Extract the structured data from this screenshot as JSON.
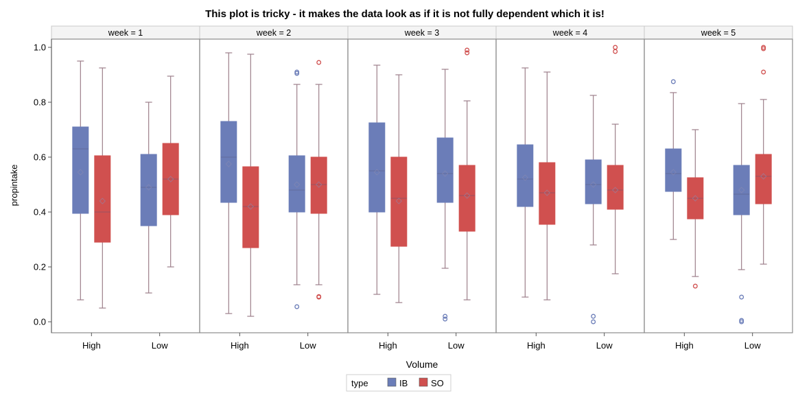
{
  "chart_data": {
    "type": "boxplot",
    "title": "This plot is tricky - it makes the data look as if it is not fully dependent which it is!",
    "xlabel": "Volume",
    "ylabel": "propintake",
    "ylim": [
      -0.04,
      1.03
    ],
    "yticks": [
      0.0,
      0.2,
      0.4,
      0.6,
      0.8,
      1.0
    ],
    "ytick_labels": [
      "0.0",
      "0.2",
      "0.4",
      "0.6",
      "0.8",
      "1.0"
    ],
    "categories": [
      "High",
      "Low"
    ],
    "panel_var": "week",
    "panel_labels": [
      "week = 1",
      "week = 2",
      "week = 3",
      "week = 4",
      "week = 5"
    ],
    "legend": {
      "title": "type",
      "position": "bottom",
      "items": [
        {
          "name": "IB",
          "color": "#6b7db8"
        },
        {
          "name": "SO",
          "color": "#d0504f"
        }
      ]
    },
    "colors": {
      "IB": "#6b7db8",
      "SO": "#d0504f",
      "whisker": "#9c7f8a",
      "frame": "#8c8c8c"
    },
    "panels": [
      {
        "week": 1,
        "groups": [
          {
            "category": "High",
            "type": "IB",
            "min": 0.08,
            "q1": 0.395,
            "median": 0.63,
            "q3": 0.71,
            "max": 0.95,
            "mean": 0.545,
            "outliers": []
          },
          {
            "category": "High",
            "type": "SO",
            "min": 0.05,
            "q1": 0.29,
            "median": 0.4,
            "q3": 0.605,
            "max": 0.925,
            "mean": 0.44,
            "outliers": []
          },
          {
            "category": "Low",
            "type": "IB",
            "min": 0.105,
            "q1": 0.35,
            "median": 0.49,
            "q3": 0.61,
            "max": 0.8,
            "mean": 0.49,
            "outliers": []
          },
          {
            "category": "Low",
            "type": "SO",
            "min": 0.2,
            "q1": 0.39,
            "median": 0.52,
            "q3": 0.65,
            "max": 0.895,
            "mean": 0.52,
            "outliers": []
          }
        ]
      },
      {
        "week": 2,
        "groups": [
          {
            "category": "High",
            "type": "IB",
            "min": 0.03,
            "q1": 0.435,
            "median": 0.6,
            "q3": 0.73,
            "max": 0.98,
            "mean": 0.575,
            "outliers": []
          },
          {
            "category": "High",
            "type": "SO",
            "min": 0.02,
            "q1": 0.27,
            "median": 0.42,
            "q3": 0.565,
            "max": 0.975,
            "mean": 0.42,
            "outliers": []
          },
          {
            "category": "Low",
            "type": "IB",
            "min": 0.135,
            "q1": 0.4,
            "median": 0.48,
            "q3": 0.605,
            "max": 0.865,
            "mean": 0.5,
            "outliers": [
              0.055,
              0.905,
              0.91
            ]
          },
          {
            "category": "Low",
            "type": "SO",
            "min": 0.135,
            "q1": 0.395,
            "median": 0.5,
            "q3": 0.6,
            "max": 0.865,
            "mean": 0.5,
            "outliers": [
              0.09,
              0.092,
              0.945
            ]
          }
        ]
      },
      {
        "week": 3,
        "groups": [
          {
            "category": "High",
            "type": "IB",
            "min": 0.1,
            "q1": 0.4,
            "median": 0.55,
            "q3": 0.725,
            "max": 0.935,
            "mean": 0.545,
            "outliers": []
          },
          {
            "category": "High",
            "type": "SO",
            "min": 0.07,
            "q1": 0.275,
            "median": 0.45,
            "q3": 0.6,
            "max": 0.9,
            "mean": 0.44,
            "outliers": []
          },
          {
            "category": "Low",
            "type": "IB",
            "min": 0.195,
            "q1": 0.435,
            "median": 0.54,
            "q3": 0.67,
            "max": 0.92,
            "mean": 0.54,
            "outliers": [
              0.01,
              0.02
            ]
          },
          {
            "category": "Low",
            "type": "SO",
            "min": 0.08,
            "q1": 0.33,
            "median": 0.46,
            "q3": 0.57,
            "max": 0.805,
            "mean": 0.46,
            "outliers": [
              0.98,
              0.99
            ]
          }
        ]
      },
      {
        "week": 4,
        "groups": [
          {
            "category": "High",
            "type": "IB",
            "min": 0.09,
            "q1": 0.42,
            "median": 0.52,
            "q3": 0.645,
            "max": 0.925,
            "mean": 0.525,
            "outliers": []
          },
          {
            "category": "High",
            "type": "SO",
            "min": 0.08,
            "q1": 0.355,
            "median": 0.47,
            "q3": 0.58,
            "max": 0.91,
            "mean": 0.47,
            "outliers": []
          },
          {
            "category": "Low",
            "type": "IB",
            "min": 0.28,
            "q1": 0.43,
            "median": 0.5,
            "q3": 0.59,
            "max": 0.825,
            "mean": 0.5,
            "outliers": [
              0.0,
              0.02
            ]
          },
          {
            "category": "Low",
            "type": "SO",
            "min": 0.175,
            "q1": 0.41,
            "median": 0.48,
            "q3": 0.57,
            "max": 0.72,
            "mean": 0.48,
            "outliers": [
              0.985,
              1.0
            ]
          }
        ]
      },
      {
        "week": 5,
        "groups": [
          {
            "category": "High",
            "type": "IB",
            "min": 0.3,
            "q1": 0.475,
            "median": 0.54,
            "q3": 0.63,
            "max": 0.835,
            "mean": 0.545,
            "outliers": [
              0.875
            ]
          },
          {
            "category": "High",
            "type": "SO",
            "min": 0.165,
            "q1": 0.375,
            "median": 0.45,
            "q3": 0.525,
            "max": 0.7,
            "mean": 0.45,
            "outliers": [
              0.13
            ]
          },
          {
            "category": "Low",
            "type": "IB",
            "min": 0.19,
            "q1": 0.39,
            "median": 0.465,
            "q3": 0.57,
            "max": 0.795,
            "mean": 0.48,
            "outliers": [
              0.0,
              0.005,
              0.09
            ]
          },
          {
            "category": "Low",
            "type": "SO",
            "min": 0.21,
            "q1": 0.43,
            "median": 0.53,
            "q3": 0.61,
            "max": 0.81,
            "mean": 0.53,
            "outliers": [
              0.91,
              0.995,
              1.0
            ]
          }
        ]
      }
    ]
  }
}
